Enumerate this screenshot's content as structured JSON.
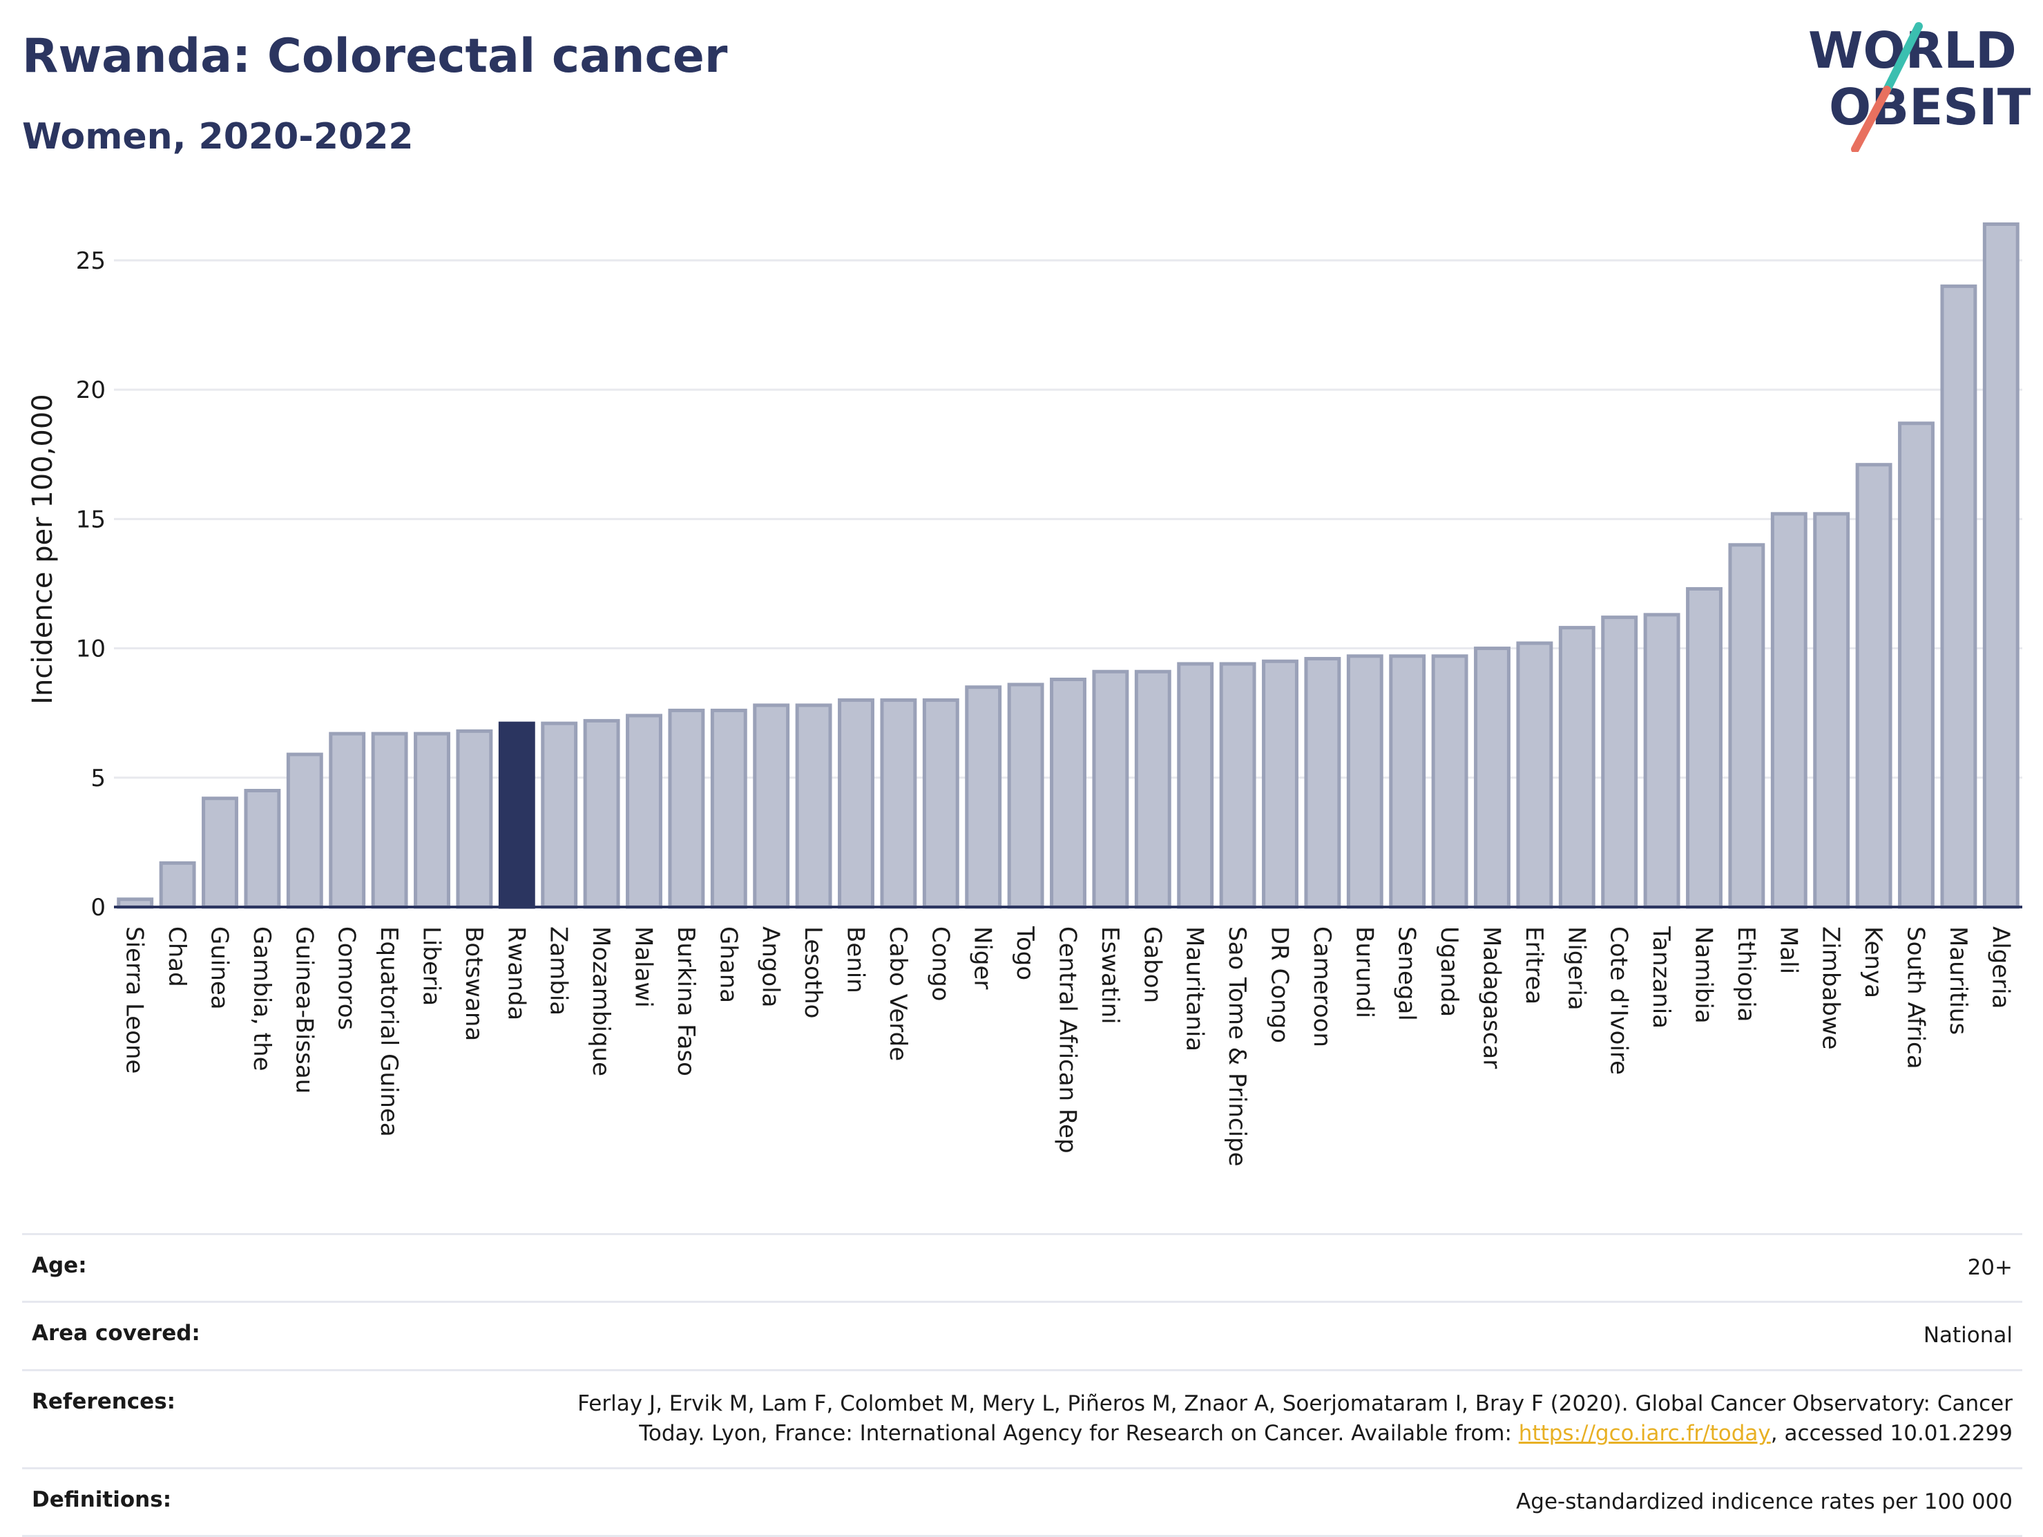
{
  "header": {
    "title": "Rwanda: Colorectal cancer",
    "subtitle": "Women, 2020-2022"
  },
  "logo": {
    "line1": "WORLD",
    "line2": "OBESITY",
    "colors": {
      "text": "#2b3560",
      "stroke_top": "#3bbfb0",
      "stroke_bottom": "#e8705f"
    }
  },
  "colors": {
    "bar": "#bcc1d1",
    "bar_border": "#9aa1b8",
    "highlight": "#2b3560",
    "grid": "#e8e9ee",
    "axis": "#2b3560",
    "link": "#e8b024"
  },
  "chart_data": {
    "type": "bar",
    "ylabel": "Incidence per 100,000",
    "ylim": [
      0,
      27
    ],
    "yticks": [
      0,
      5,
      10,
      15,
      20,
      25
    ],
    "grid": true,
    "highlight": "Rwanda",
    "categories": [
      "Sierra Leone",
      "Chad",
      "Guinea",
      "Gambia, the",
      "Guinea-Bissau",
      "Comoros",
      "Equatorial Guinea",
      "Liberia",
      "Botswana",
      "Rwanda",
      "Zambia",
      "Mozambique",
      "Malawi",
      "Burkina Faso",
      "Ghana",
      "Angola",
      "Lesotho",
      "Benin",
      "Cabo Verde",
      "Congo",
      "Niger",
      "Togo",
      "Central African Rep",
      "Eswatini",
      "Gabon",
      "Mauritania",
      "Sao Tome & Principe",
      "DR Congo",
      "Cameroon",
      "Burundi",
      "Senegal",
      "Uganda",
      "Madagascar",
      "Eritrea",
      "Nigeria",
      "Cote d'Ivoire",
      "Tanzania",
      "Namibia",
      "Ethiopia",
      "Mali",
      "Zimbabwe",
      "Kenya",
      "South Africa",
      "Mauritius",
      "Algeria"
    ],
    "values": [
      0.3,
      1.7,
      4.2,
      4.5,
      5.9,
      6.7,
      6.7,
      6.7,
      6.8,
      7.1,
      7.1,
      7.2,
      7.4,
      7.6,
      7.6,
      7.8,
      7.8,
      8.0,
      8.0,
      8.0,
      8.5,
      8.6,
      8.8,
      9.1,
      9.1,
      9.4,
      9.4,
      9.5,
      9.6,
      9.7,
      9.7,
      9.7,
      10.0,
      10.2,
      10.8,
      11.2,
      11.3,
      12.3,
      14.0,
      15.2,
      15.2,
      17.1,
      18.7,
      24.0,
      26.4
    ]
  },
  "info": [
    {
      "label": "Age:",
      "value": "20+"
    },
    {
      "label": "Area covered:",
      "value": "National"
    },
    {
      "label": "References:",
      "value_before": "Ferlay J, Ervik M, Lam F, Colombet M, Mery L, Piñeros M, Znaor A, Soerjomataram I, Bray F (2020). Global Cancer Observatory: Cancer Today. Lyon, France: International Agency for Research on Cancer. Available from: ",
      "link": "https://gco.iarc.fr/today",
      "value_after": ", accessed 10.01.2299"
    },
    {
      "label": "Definitions:",
      "value": "Age-standardized indicence rates per 100 000"
    }
  ]
}
